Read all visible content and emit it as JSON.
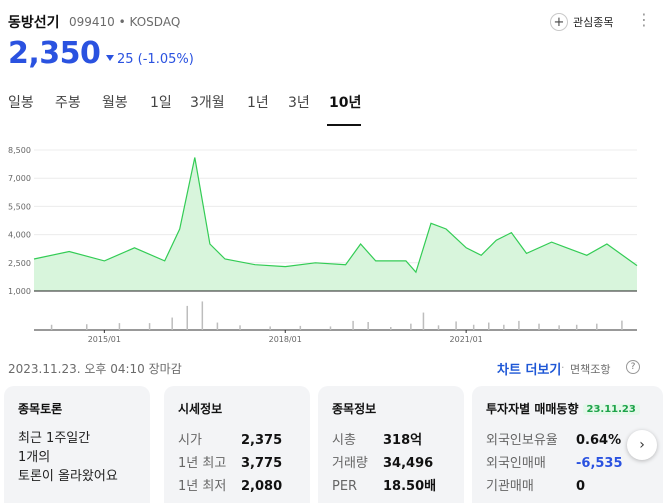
{
  "stock": {
    "name": "동방선기",
    "code_market": "099410 • KOSDAQ",
    "price": "2,350",
    "change": "25 (-1.05%)",
    "favorite_label": "관심종목"
  },
  "tabs": [
    "일봉",
    "주봉",
    "월봉",
    "1일",
    "3개월",
    "1년",
    "3년",
    "10년"
  ],
  "active_tab": "10년",
  "timestamp": "2023.11.23. 오후 04:10 장마감",
  "links": {
    "chart_more": "차트 더보기",
    "disclaimer": "면책조항"
  },
  "cards": {
    "discussion": {
      "title": "종목토론",
      "lines": [
        "최근 1주일간",
        "1개의",
        "토론이 올라왔어요"
      ]
    },
    "market": {
      "title": "시세정보",
      "rows": [
        {
          "label": "시가",
          "value": "2,375"
        },
        {
          "label": "1년 최고",
          "value": "3,775"
        },
        {
          "label": "1년 최저",
          "value": "2,080"
        }
      ]
    },
    "stock_info": {
      "title": "종목정보",
      "rows": [
        {
          "label": "시총",
          "value": "318억"
        },
        {
          "label": "거래량",
          "value": "34,496"
        },
        {
          "label": "PER",
          "value": "18.50배"
        }
      ]
    },
    "investors": {
      "title": "투자자별 매매동향",
      "date": "23.11.23",
      "rows": [
        {
          "label": "외국인보유율",
          "value": "0.64%"
        },
        {
          "label": "외국인매매",
          "value": "-6,535"
        },
        {
          "label": "기관매매",
          "value": "0"
        }
      ]
    }
  },
  "colors": {
    "accent": "#2a52e0",
    "chart_line": "#33cc55",
    "chart_fill": "#d8f5dc",
    "badge_green": "#1ea34a"
  },
  "chart_data": {
    "type": "area",
    "yticks": [
      "8,500",
      "7,000",
      "5,500",
      "4,000",
      "2,500",
      "1,000"
    ],
    "ylim": [
      1000,
      8500
    ],
    "xticks": [
      "2015/01",
      "2018/01",
      "2021/01"
    ],
    "x": [
      "2013/11",
      "2014/06",
      "2015/01",
      "2015/07",
      "2016/01",
      "2016/04",
      "2016/07",
      "2016/10",
      "2017/01",
      "2017/07",
      "2018/01",
      "2018/07",
      "2019/01",
      "2019/04",
      "2019/07",
      "2020/01",
      "2020/03",
      "2020/06",
      "2020/09",
      "2021/01",
      "2021/04",
      "2021/07",
      "2021/10",
      "2022/01",
      "2022/06",
      "2022/09",
      "2023/01",
      "2023/05",
      "2023/11"
    ],
    "values": [
      2700,
      3100,
      2600,
      3300,
      2600,
      4300,
      8100,
      3500,
      2700,
      2400,
      2300,
      2500,
      2400,
      3500,
      2600,
      2600,
      2000,
      4600,
      4300,
      3300,
      2900,
      3700,
      4100,
      3000,
      3600,
      3300,
      2900,
      3500,
      2350
    ]
  }
}
